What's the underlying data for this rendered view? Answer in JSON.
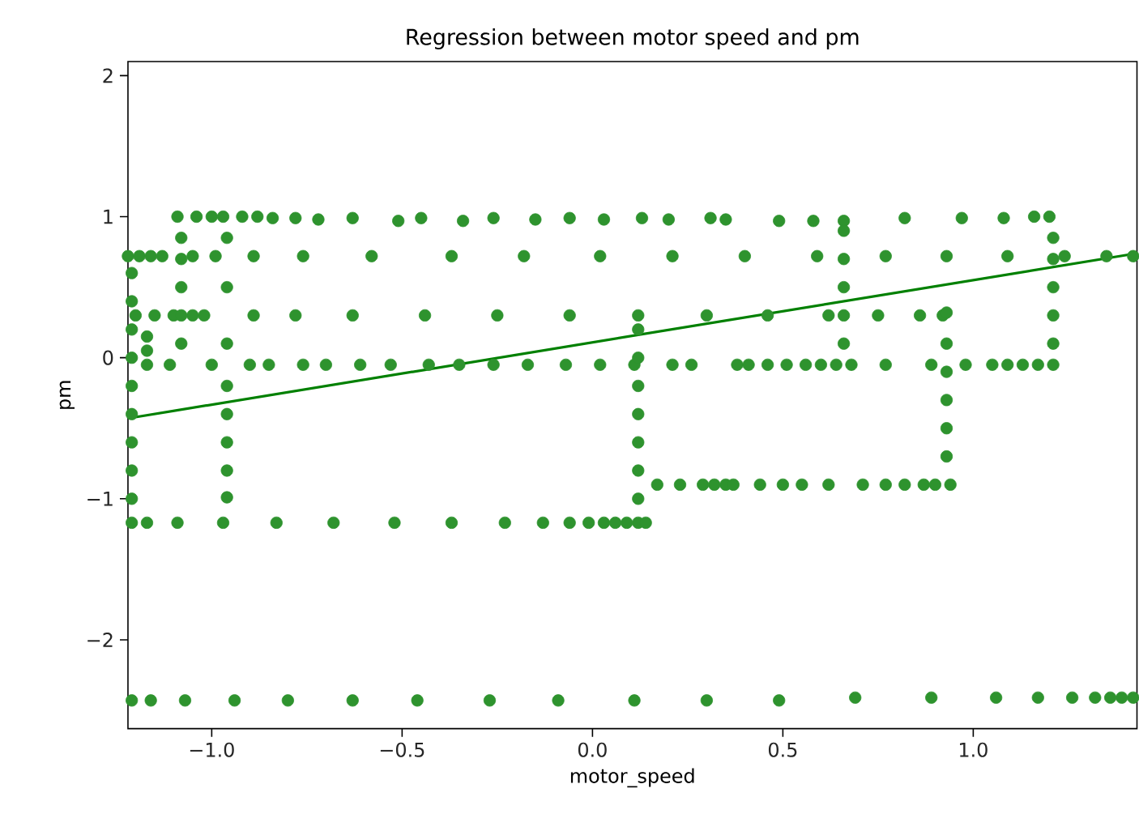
{
  "chart_data": {
    "type": "scatter",
    "title": "Regression between motor speed and pm",
    "xlabel": "motor_speed",
    "ylabel": "pm",
    "xlim": [
      -1.22,
      1.43
    ],
    "ylim": [
      -2.63,
      2.1
    ],
    "xticks": [
      {
        "value": -1.0,
        "label": "−1.0"
      },
      {
        "value": -0.5,
        "label": "−0.5"
      },
      {
        "value": 0.0,
        "label": "0.0"
      },
      {
        "value": 0.5,
        "label": "0.5"
      },
      {
        "value": 1.0,
        "label": "1.0"
      }
    ],
    "yticks": [
      {
        "value": -2,
        "label": "−2"
      },
      {
        "value": -1,
        "label": "−1"
      },
      {
        "value": 0,
        "label": "0"
      },
      {
        "value": 1,
        "label": "1"
      },
      {
        "value": 2,
        "label": "2"
      }
    ],
    "series": [
      {
        "marker": "circle",
        "color": "#2e932e",
        "x": [
          -1.09,
          -1.04,
          -1.0,
          -0.97,
          -0.92,
          -0.88,
          -0.84,
          -0.78,
          -0.72,
          -0.63,
          -0.51,
          -0.45,
          -0.34,
          -0.26,
          -0.15,
          -0.06,
          0.03,
          0.13,
          0.2,
          0.31,
          0.35,
          0.49,
          0.58,
          0.66,
          0.82,
          0.97,
          1.08,
          1.16,
          1.2,
          -1.22,
          -1.19,
          -1.16,
          -1.13,
          -1.05,
          -0.99,
          -0.89,
          -0.76,
          -0.58,
          -0.37,
          -0.18,
          0.02,
          0.21,
          0.4,
          0.59,
          0.77,
          0.93,
          1.09,
          1.24,
          1.35,
          1.42,
          -1.2,
          -1.15,
          -1.1,
          -1.05,
          -1.02,
          -0.89,
          -0.78,
          -0.63,
          -0.44,
          -0.25,
          -0.06,
          0.12,
          0.3,
          0.46,
          0.62,
          0.75,
          0.86,
          0.92,
          -1.17,
          -1.11,
          -1.0,
          -0.9,
          -0.85,
          -0.76,
          -0.7,
          -0.61,
          -0.53,
          -0.43,
          -0.35,
          -0.26,
          -0.17,
          -0.07,
          0.02,
          0.11,
          0.21,
          0.26,
          0.38,
          0.41,
          0.46,
          0.51,
          0.56,
          0.6,
          0.64,
          0.68,
          0.77,
          0.89,
          0.98,
          1.05,
          1.09,
          1.13,
          1.17,
          1.21,
          -1.21,
          -1.17,
          -1.09,
          -0.97,
          -0.83,
          -0.68,
          -0.52,
          -0.37,
          -0.23,
          -0.13,
          -0.06,
          -0.01,
          0.03,
          0.06,
          0.09,
          0.12,
          0.14,
          0.17,
          0.23,
          0.29,
          0.32,
          0.35,
          0.37,
          0.44,
          0.5,
          0.55,
          0.62,
          0.71,
          0.77,
          0.82,
          0.87,
          0.9,
          0.94,
          -1.21,
          -1.16,
          -1.07,
          -0.94,
          -0.8,
          -0.63,
          -0.46,
          -0.27,
          -0.09,
          0.11,
          0.3,
          0.49,
          0.69,
          0.89,
          1.06,
          1.17,
          1.26,
          1.32,
          1.36,
          1.39,
          1.42,
          -1.21,
          -1.21,
          -1.21,
          -1.21,
          -1.21,
          -1.21,
          -1.21,
          -1.21,
          -1.21,
          -1.17,
          -1.17,
          -1.08,
          -1.08,
          -1.08,
          -1.08,
          -1.08,
          -0.96,
          -0.96,
          -0.96,
          -0.96,
          -0.96,
          -0.96,
          -0.96,
          -0.96,
          0.12,
          0.12,
          0.12,
          0.12,
          0.12,
          0.12,
          0.12,
          0.66,
          0.66,
          0.66,
          0.66,
          0.66,
          0.93,
          0.93,
          0.93,
          0.93,
          0.93,
          0.93,
          1.21,
          1.21,
          1.21,
          1.21,
          1.21
        ],
        "values": [
          1.0,
          1.0,
          1.0,
          1.0,
          1.0,
          1.0,
          0.99,
          0.99,
          0.98,
          0.99,
          0.97,
          0.99,
          0.97,
          0.99,
          0.98,
          0.99,
          0.98,
          0.99,
          0.98,
          0.99,
          0.98,
          0.97,
          0.97,
          0.97,
          0.99,
          0.99,
          0.99,
          1.0,
          1.0,
          0.72,
          0.72,
          0.72,
          0.72,
          0.72,
          0.72,
          0.72,
          0.72,
          0.72,
          0.72,
          0.72,
          0.72,
          0.72,
          0.72,
          0.72,
          0.72,
          0.72,
          0.72,
          0.72,
          0.72,
          0.72,
          0.3,
          0.3,
          0.3,
          0.3,
          0.3,
          0.3,
          0.3,
          0.3,
          0.3,
          0.3,
          0.3,
          0.3,
          0.3,
          0.3,
          0.3,
          0.3,
          0.3,
          0.3,
          -0.05,
          -0.05,
          -0.05,
          -0.05,
          -0.05,
          -0.05,
          -0.05,
          -0.05,
          -0.05,
          -0.05,
          -0.05,
          -0.05,
          -0.05,
          -0.05,
          -0.05,
          -0.05,
          -0.05,
          -0.05,
          -0.05,
          -0.05,
          -0.05,
          -0.05,
          -0.05,
          -0.05,
          -0.05,
          -0.05,
          -0.05,
          -0.05,
          -0.05,
          -0.05,
          -0.05,
          -0.05,
          -0.05,
          -0.05,
          -1.17,
          -1.17,
          -1.17,
          -1.17,
          -1.17,
          -1.17,
          -1.17,
          -1.17,
          -1.17,
          -1.17,
          -1.17,
          -1.17,
          -1.17,
          -1.17,
          -1.17,
          -1.17,
          -1.17,
          -0.9,
          -0.9,
          -0.9,
          -0.9,
          -0.9,
          -0.9,
          -0.9,
          -0.9,
          -0.9,
          -0.9,
          -0.9,
          -0.9,
          -0.9,
          -0.9,
          -0.9,
          -0.9,
          -2.43,
          -2.43,
          -2.43,
          -2.43,
          -2.43,
          -2.43,
          -2.43,
          -2.43,
          -2.43,
          -2.43,
          -2.43,
          -2.43,
          -2.41,
          -2.41,
          -2.41,
          -2.41,
          -2.41,
          -2.41,
          -2.41,
          -2.41,
          -2.41,
          -1.0,
          -0.8,
          -0.6,
          -0.4,
          -0.2,
          0.0,
          0.2,
          0.4,
          0.6,
          0.05,
          0.15,
          0.1,
          0.3,
          0.5,
          0.7,
          0.85,
          -0.99,
          -0.8,
          -0.6,
          -0.4,
          -0.2,
          0.1,
          0.5,
          0.85,
          -1.0,
          -0.8,
          -0.6,
          -0.4,
          -0.2,
          0.0,
          0.2,
          0.1,
          0.3,
          0.5,
          0.7,
          0.9,
          -0.7,
          -0.5,
          -0.3,
          -0.1,
          0.1,
          0.32,
          0.1,
          0.3,
          0.5,
          0.7,
          0.85
        ]
      },
      {
        "type": "line",
        "marker": "none",
        "color": "#008000",
        "x": [
          -1.22,
          1.43
        ],
        "values": [
          -0.43,
          0.74
        ]
      }
    ]
  }
}
